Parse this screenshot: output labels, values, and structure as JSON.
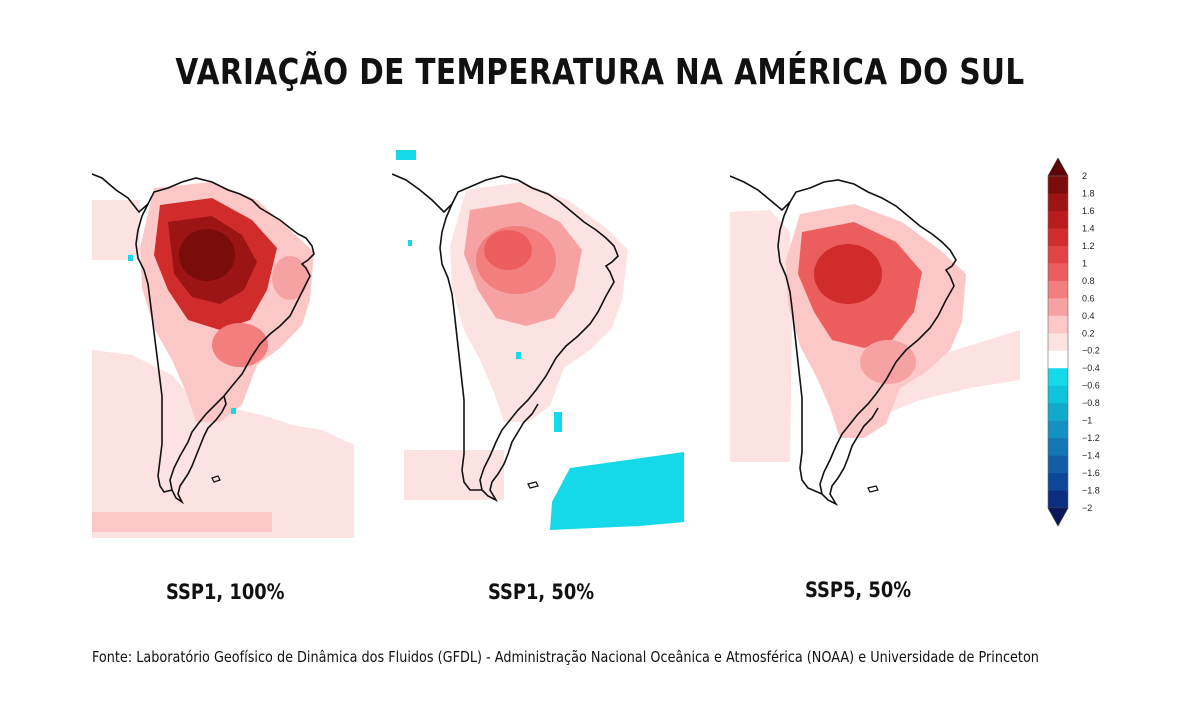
{
  "title": "VARIAÇÃO DE TEMPERATURA NA AMÉRICA DO SUL",
  "panels": [
    {
      "label": "SSP1, 100%",
      "intensity": "high"
    },
    {
      "label": "SSP1, 50%",
      "intensity": "medium"
    },
    {
      "label": "SSP5, 50%",
      "intensity": "medium-high"
    }
  ],
  "colorbar": {
    "ticks": [
      "2",
      "1.8",
      "1.6",
      "1.4",
      "1.2",
      "1",
      "0.8",
      "0.6",
      "0.4",
      "0.2",
      "−0.2",
      "−0.4",
      "−0.6",
      "−0.8",
      "−1",
      "−1.2",
      "−1.4",
      "−1.6",
      "−1.8",
      "−2"
    ],
    "colors": [
      "#7a0c0c",
      "#9c1414",
      "#b91c1c",
      "#d02c2c",
      "#e04444",
      "#ec5e5e",
      "#f27e7e",
      "#f7a2a2",
      "#fbc7c7",
      "#fde2e2",
      "#ffffff",
      "#15d8e8",
      "#0ec3db",
      "#12aacb",
      "#1591c1",
      "#1477b5",
      "#125ea6",
      "#0f4798",
      "#0b2f7f"
    ],
    "top_arrow_color": "#5e0606",
    "bottom_arrow_color": "#06175c"
  },
  "source": "Fonte: Laboratório Geofísico de Dinâmica dos Fluidos (GFDL) - Administração Nacional Oceânica e Atmosférica (NOAA) e Universidade de Princeton"
}
